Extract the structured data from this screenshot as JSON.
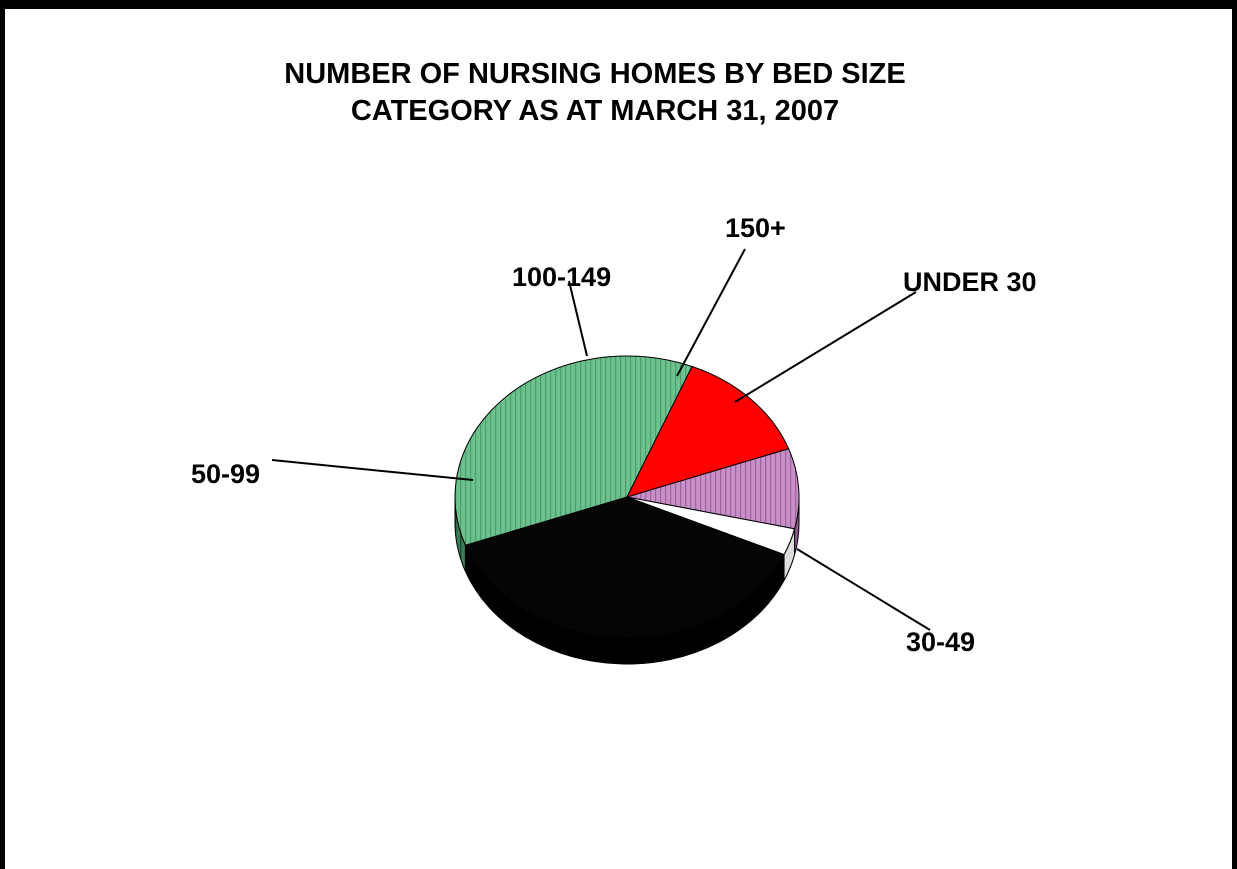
{
  "chart_data": {
    "type": "pie",
    "title_lines": [
      "NUMBER OF NURSING HOMES BY BED SIZE",
      "CATEGORY AS AT MARCH 31, 2007"
    ],
    "slices": [
      {
        "label": "30-49",
        "value": 37,
        "color": "#050505",
        "side_color": "#000000",
        "pattern": "none"
      },
      {
        "label": "50-99",
        "value": 36,
        "color": "#6cc28d",
        "side_color": "#3a7d56",
        "pattern": "vstripe"
      },
      {
        "label": "100-149",
        "value": 13,
        "color": "#ff0000",
        "side_color": "#b00000",
        "pattern": "none"
      },
      {
        "label": "150+",
        "value": 9,
        "color": "#c98fc9",
        "side_color": "#8c5a8c",
        "pattern": "vstripe"
      },
      {
        "label": "UNDER 30",
        "value": 3,
        "color": "#ffffff",
        "side_color": "#dddddd",
        "pattern": "none"
      }
    ],
    "legend": "none"
  }
}
